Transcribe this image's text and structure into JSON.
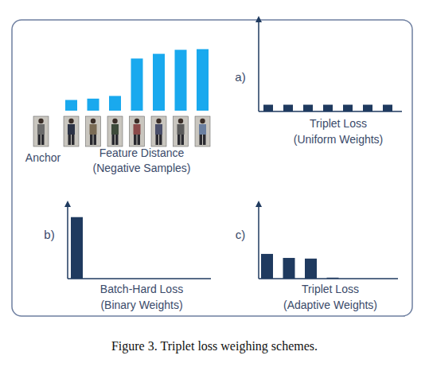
{
  "caption": "Figure 3. Triplet loss weighing schemes.",
  "anchor_label": "Anchor",
  "chart_data": [
    {
      "type": "bar",
      "title": "Feature Distance",
      "subtitle": "(Negative Samples)",
      "color": "#19a9ee",
      "values": [
        0.16,
        0.18,
        0.22,
        0.78,
        0.85,
        0.91,
        0.92
      ],
      "ylim": [
        0,
        1
      ],
      "tick_labels": false
    },
    {
      "type": "bar",
      "panel_label": "a)",
      "title": "Triplet Loss",
      "subtitle": "(Uniform Weights)",
      "color": "#1f3a5f",
      "values": [
        0.08,
        0.08,
        0.08,
        0.08,
        0.08,
        0.08,
        0.08
      ],
      "ylim": [
        0,
        1
      ],
      "tick_labels": false
    },
    {
      "type": "bar",
      "panel_label": "b)",
      "title": "Batch-Hard Loss",
      "subtitle": "(Binary Weights)",
      "color": "#1f3a5f",
      "values": [
        0.92,
        0,
        0,
        0,
        0,
        0,
        0
      ],
      "ylim": [
        0,
        1
      ],
      "tick_labels": false
    },
    {
      "type": "bar",
      "panel_label": "c)",
      "title": "Triplet Loss",
      "subtitle": "(Adaptive Weights)",
      "color": "#1f3a5f",
      "values": [
        0.37,
        0.31,
        0.3,
        0.015,
        0,
        0,
        0
      ],
      "ylim": [
        0,
        1
      ],
      "tick_labels": false
    }
  ]
}
